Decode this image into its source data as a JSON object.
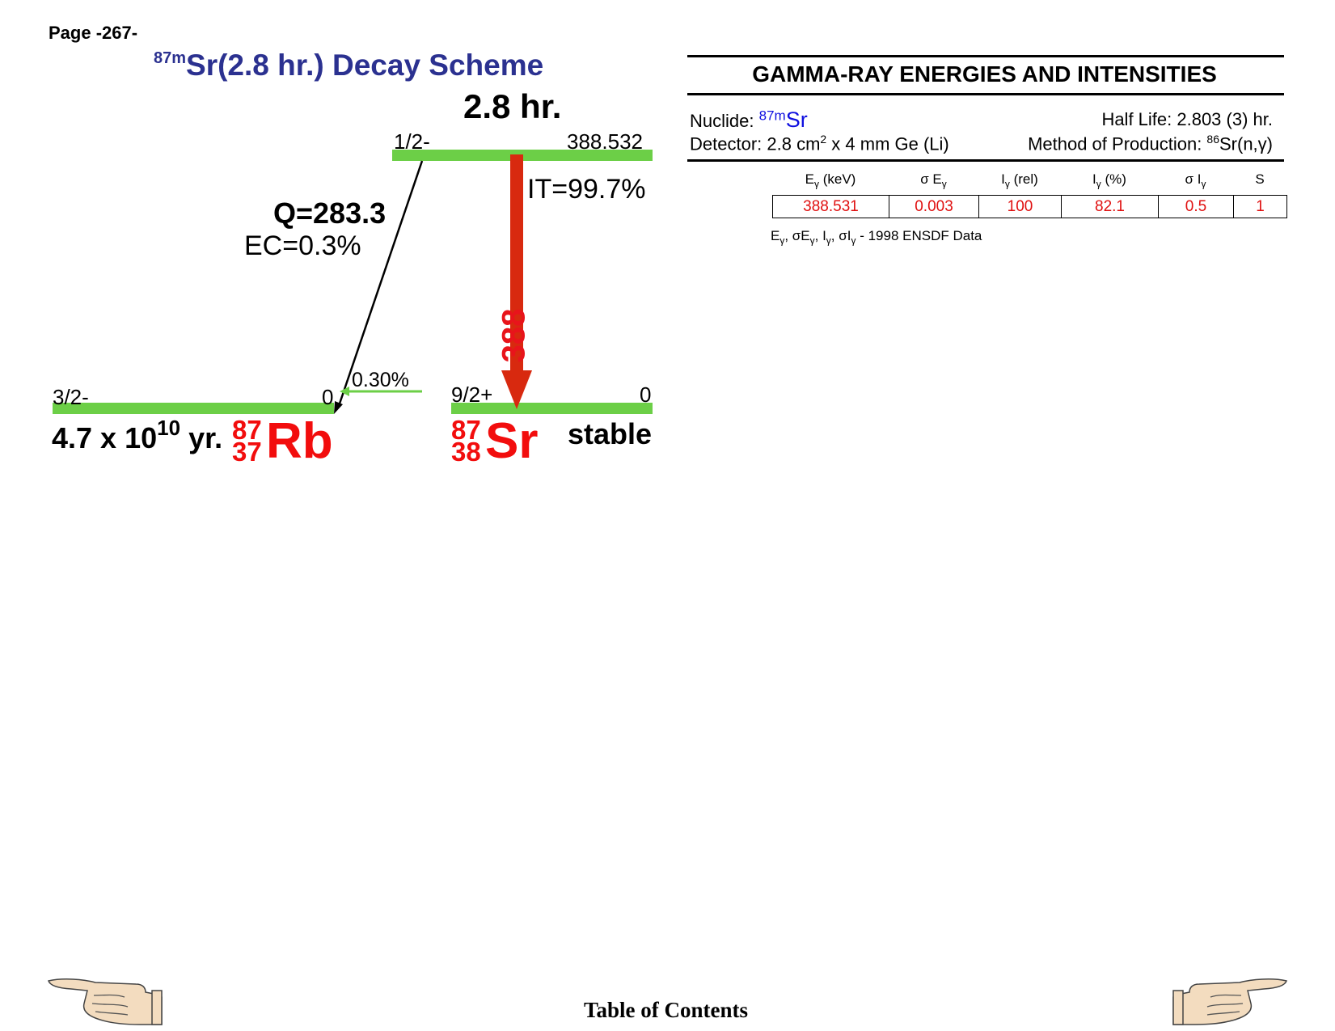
{
  "page": {
    "number_label": "Page -267-"
  },
  "scheme": {
    "title_sup": "87m",
    "title_text": "Sr(2.8 hr.) Decay Scheme",
    "parent_halflife": "2.8 hr.",
    "parent_level": {
      "spin": "1/2-",
      "energy": "388.532"
    },
    "q_value": "Q=283.3",
    "ec_branch": "EC=0.3%",
    "it_branch": "IT=99.7%",
    "gamma_energy": "388",
    "ec_feed_percent": "0.30%",
    "rb_level": {
      "spin": "3/2-",
      "energy": "0"
    },
    "sr_level": {
      "spin": "9/2+",
      "energy": "0"
    },
    "rb_halflife_base": "4.7 x 10",
    "rb_halflife_exp": "10",
    "rb_halflife_unit": "yr.",
    "rb_nuclide": {
      "mass": "87",
      "z": "37",
      "symbol": "Rb"
    },
    "sr_nuclide": {
      "mass": "87",
      "z": "38",
      "symbol": "Sr"
    },
    "sr_stability": "stable",
    "colors": {
      "level": "#6ccf47",
      "transition": "#d8290f",
      "nuclide": "#f20d0d",
      "title": "#2b3190"
    }
  },
  "gamma_table": {
    "title": "GAMMA-RAY ENERGIES AND INTENSITIES",
    "nuclide_label": "Nuclide:",
    "nuclide_sup": "87m",
    "nuclide_symbol": "Sr",
    "half_life": "Half Life: 2.803 (3) hr.",
    "detector_pre": "Detector: 2.8 cm",
    "detector_sup": "2",
    "detector_post": " x 4 mm Ge (Li)",
    "production_pre": "Method of Production: ",
    "production_sup": "86",
    "production_post": "Sr(n,γ)",
    "headers": [
      {
        "main": "E",
        "sub": "γ",
        "tail": " (keV)"
      },
      {
        "main": "σ E",
        "sub": "γ",
        "tail": ""
      },
      {
        "main": "I",
        "sub": "γ",
        "tail": " (rel)"
      },
      {
        "main": "I",
        "sub": "γ",
        "tail": " (%)"
      },
      {
        "main": "σ I",
        "sub": "γ",
        "tail": ""
      },
      {
        "main": "S",
        "sub": "",
        "tail": ""
      }
    ],
    "rows": [
      [
        "388.531",
        "0.003",
        "100",
        "82.1",
        "0.5",
        "1"
      ]
    ],
    "footnote_source": " - 1998 ENSDF Data"
  },
  "footer": {
    "toc_label": "Table of Contents"
  },
  "icons": {
    "prev": "pointing-hand-left-icon",
    "next": "pointing-hand-right-icon"
  }
}
